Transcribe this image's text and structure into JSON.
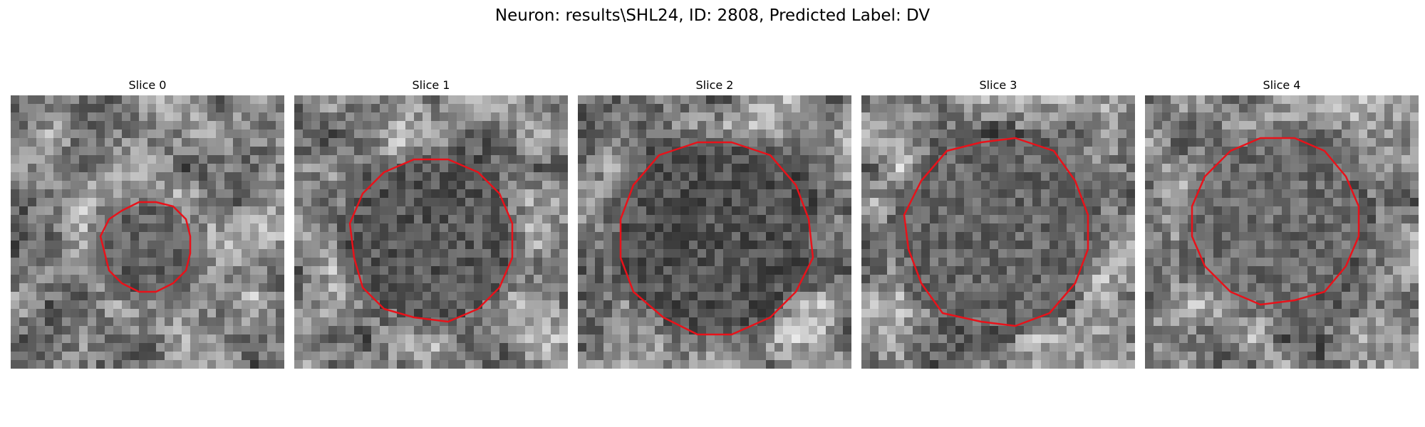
{
  "figure": {
    "title": "Neuron: results\\SHL24, ID: 2808, Predicted Label: DV"
  },
  "panels": [
    {
      "title": "Slice 0",
      "seed": 11,
      "contour_scale": 0.45,
      "inside_shade": 0.38
    },
    {
      "title": "Slice 1",
      "seed": 27,
      "contour_scale": 0.85,
      "inside_shade": 0.34
    },
    {
      "title": "Slice 2",
      "seed": 43,
      "contour_scale": 1.0,
      "inside_shade": 0.32
    },
    {
      "title": "Slice 3",
      "seed": 59,
      "contour_scale": 0.98,
      "inside_shade": 0.4
    },
    {
      "title": "Slice 4",
      "seed": 71,
      "contour_scale": 0.88,
      "inside_shade": 0.42
    }
  ],
  "colors": {
    "contour": "#e8121a",
    "background": "#ffffff"
  }
}
